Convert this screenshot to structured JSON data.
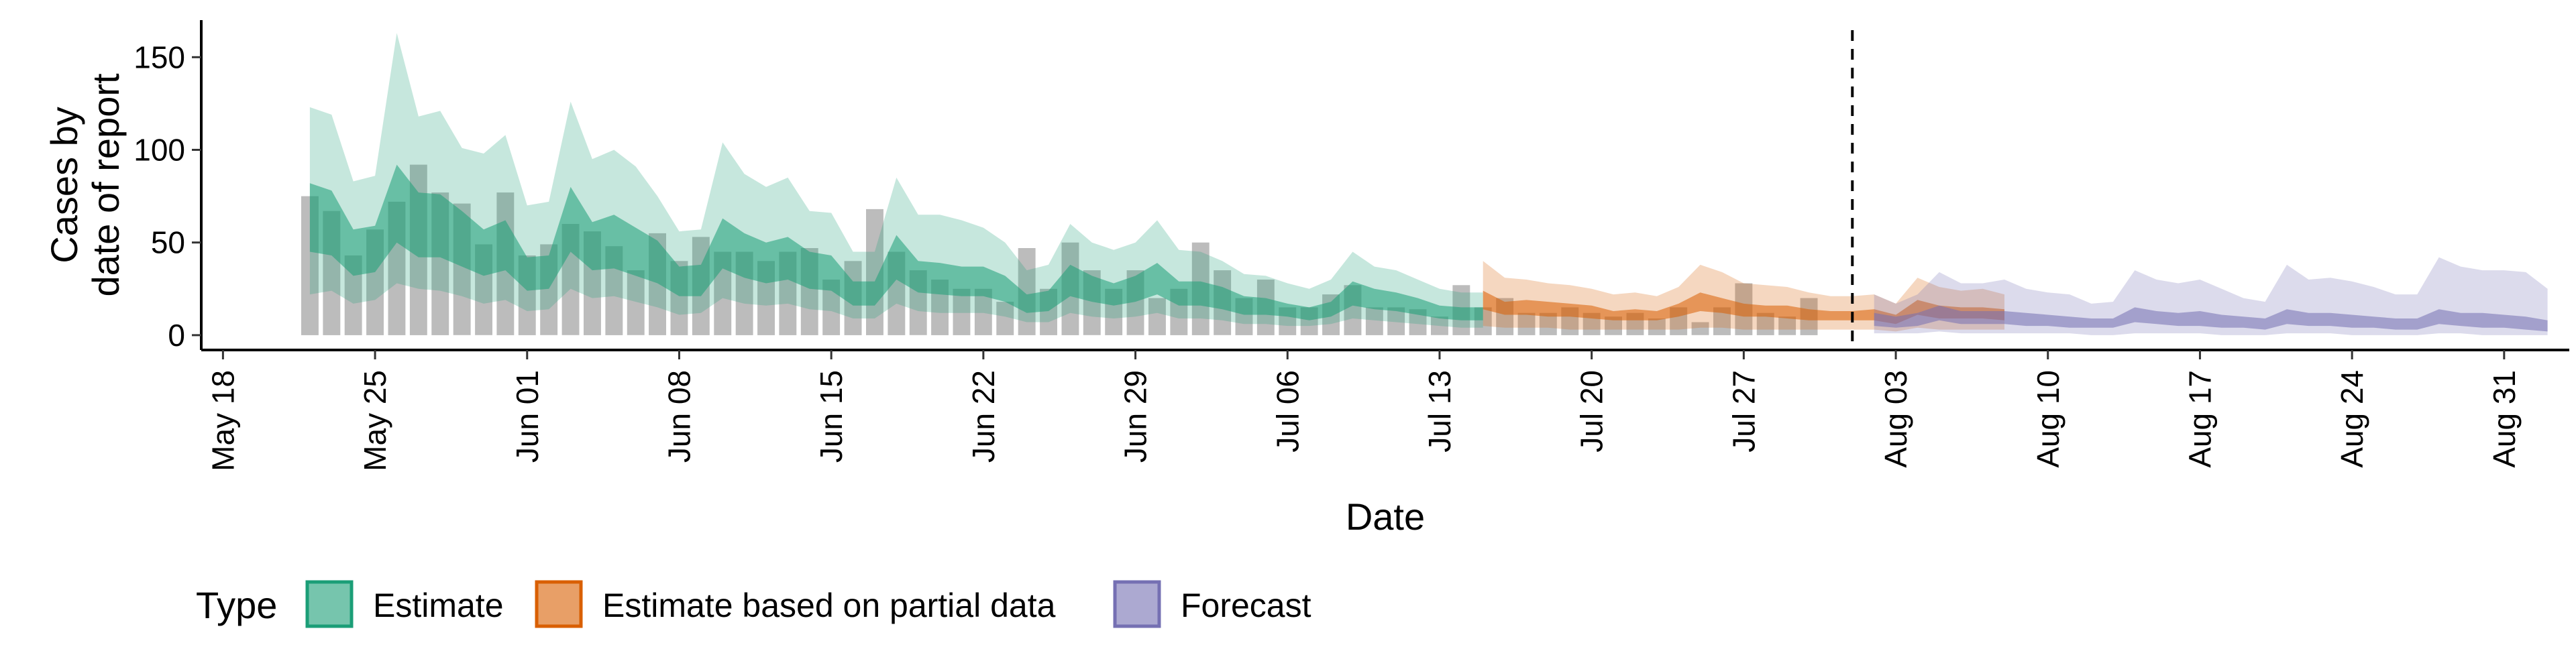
{
  "chart_data": {
    "type": "area",
    "xlabel": "Date",
    "ylabel_lines": [
      "Cases by",
      "date of report"
    ],
    "x_range": [
      "2024-05-17",
      "2024-09-03"
    ],
    "y_range": [
      -8,
      170
    ],
    "y_ticks": [
      0,
      50,
      100,
      150
    ],
    "x_ticks": [
      {
        "date": "2024-05-18",
        "label": "May 18"
      },
      {
        "date": "2024-05-25",
        "label": "May 25"
      },
      {
        "date": "2024-06-01",
        "label": "Jun 01"
      },
      {
        "date": "2024-06-08",
        "label": "Jun 08"
      },
      {
        "date": "2024-06-15",
        "label": "Jun 15"
      },
      {
        "date": "2024-06-22",
        "label": "Jun 22"
      },
      {
        "date": "2024-06-29",
        "label": "Jun 29"
      },
      {
        "date": "2024-07-06",
        "label": "Jul 06"
      },
      {
        "date": "2024-07-13",
        "label": "Jul 13"
      },
      {
        "date": "2024-07-20",
        "label": "Jul 20"
      },
      {
        "date": "2024-07-27",
        "label": "Jul 27"
      },
      {
        "date": "2024-08-03",
        "label": "Aug 03"
      },
      {
        "date": "2024-08-10",
        "label": "Aug 10"
      },
      {
        "date": "2024-08-17",
        "label": "Aug 17"
      },
      {
        "date": "2024-08-24",
        "label": "Aug 24"
      },
      {
        "date": "2024-08-31",
        "label": "Aug 31"
      }
    ],
    "forecast_date": "2024-08-01",
    "grid": false,
    "legend": {
      "title": "Type",
      "placement": "bottom-left",
      "entries": [
        {
          "label": "Estimate",
          "color": "#1B9E77"
        },
        {
          "label": "Estimate based on partial data",
          "color": "#D95F02"
        },
        {
          "label": "Forecast",
          "color": "#7570B3"
        }
      ]
    },
    "observed": {
      "color": "#a6a6a6",
      "start": "2024-05-22",
      "values": [
        75,
        67,
        43,
        57,
        72,
        92,
        77,
        71,
        49,
        77,
        43,
        49,
        60,
        56,
        48,
        35,
        55,
        40,
        53,
        45,
        45,
        40,
        45,
        47,
        30,
        40,
        68,
        45,
        35,
        30,
        25,
        25,
        18,
        47,
        25,
        50,
        35,
        25,
        35,
        20,
        25,
        50,
        35,
        20,
        30,
        15,
        15,
        22,
        27,
        15,
        15,
        14,
        10,
        27,
        15,
        20,
        12,
        12,
        15,
        12,
        10,
        12,
        9,
        15,
        7,
        15,
        28,
        12,
        10,
        20
      ]
    },
    "series": [
      {
        "name": "Estimate",
        "color": "#1B9E77",
        "start": "2024-05-22",
        "outer_upper": [
          123,
          119,
          83,
          86,
          163,
          118,
          121,
          101,
          98,
          108,
          70,
          72,
          126,
          95,
          100,
          91,
          75,
          56,
          57,
          104,
          87,
          80,
          85,
          67,
          66,
          45,
          45,
          85,
          65,
          65,
          62,
          58,
          50,
          35,
          38,
          60,
          50,
          46,
          50,
          62,
          46,
          45,
          40,
          33,
          32,
          28,
          25,
          30,
          45,
          37,
          35,
          30,
          25,
          23,
          23
        ],
        "inner_upper": [
          82,
          78,
          57,
          59,
          92,
          77,
          76,
          67,
          57,
          62,
          42,
          43,
          80,
          61,
          65,
          58,
          51,
          37,
          38,
          63,
          55,
          50,
          53,
          45,
          43,
          29,
          29,
          54,
          40,
          39,
          37,
          37,
          32,
          22,
          24,
          38,
          32,
          28,
          32,
          39,
          29,
          29,
          26,
          21,
          20,
          17,
          15,
          18,
          29,
          25,
          23,
          20,
          16,
          15,
          15
        ],
        "inner_lower": [
          45,
          43,
          32,
          34,
          50,
          42,
          42,
          37,
          32,
          35,
          24,
          25,
          45,
          35,
          36,
          32,
          28,
          21,
          21,
          36,
          31,
          28,
          30,
          25,
          24,
          16,
          16,
          30,
          23,
          22,
          21,
          21,
          18,
          12,
          13,
          21,
          18,
          16,
          18,
          22,
          16,
          16,
          14,
          11,
          11,
          10,
          8,
          10,
          16,
          14,
          13,
          11,
          9,
          8,
          8
        ],
        "outer_lower": [
          22,
          24,
          17,
          19,
          28,
          25,
          24,
          21,
          17,
          19,
          13,
          14,
          25,
          20,
          21,
          18,
          15,
          11,
          12,
          20,
          17,
          16,
          17,
          14,
          13,
          9,
          9,
          17,
          13,
          12,
          12,
          12,
          10,
          7,
          7,
          12,
          10,
          9,
          10,
          12,
          9,
          9,
          8,
          6,
          6,
          5,
          5,
          6,
          9,
          8,
          7,
          6,
          5,
          4,
          4
        ]
      },
      {
        "name": "Estimate based on partial data",
        "color": "#D95F02",
        "start": "2024-07-15",
        "outer_upper": [
          40,
          31,
          30,
          28,
          27,
          25,
          22,
          23,
          21,
          26,
          38,
          34,
          28,
          27,
          26,
          23,
          21,
          21,
          22,
          17,
          31,
          26,
          24,
          25,
          22
        ],
        "inner_upper": [
          24,
          18,
          19,
          18,
          17,
          16,
          13,
          14,
          13,
          17,
          23,
          20,
          17,
          16,
          16,
          14,
          13,
          13,
          14,
          11,
          19,
          16,
          15,
          15,
          14
        ],
        "inner_lower": [
          14,
          11,
          11,
          10,
          10,
          9,
          8,
          8,
          8,
          10,
          13,
          12,
          10,
          10,
          9,
          8,
          8,
          8,
          8,
          6,
          11,
          9,
          9,
          9,
          8
        ],
        "outer_lower": [
          5,
          4,
          4,
          4,
          3,
          3,
          3,
          3,
          3,
          3,
          4,
          4,
          3,
          3,
          3,
          3,
          3,
          3,
          3,
          2,
          4,
          3,
          3,
          3,
          3
        ]
      },
      {
        "name": "Forecast",
        "color": "#7570B3",
        "start": "2024-08-02",
        "outer_upper": [
          22,
          17,
          22,
          34,
          28,
          28,
          30,
          25,
          23,
          22,
          17,
          18,
          35,
          30,
          28,
          30,
          25,
          20,
          18,
          38,
          30,
          31,
          29,
          26,
          22,
          22,
          42,
          37,
          35,
          35,
          34,
          25
        ],
        "inner_upper": [
          12,
          10,
          12,
          16,
          13,
          13,
          13,
          12,
          11,
          10,
          9,
          9,
          15,
          13,
          12,
          13,
          11,
          10,
          9,
          14,
          12,
          12,
          11,
          10,
          9,
          9,
          14,
          12,
          12,
          11,
          10,
          8
        ],
        "inner_lower": [
          5,
          4,
          5,
          8,
          6,
          6,
          6,
          5,
          5,
          4,
          4,
          4,
          7,
          6,
          5,
          5,
          4,
          4,
          3,
          6,
          5,
          5,
          4,
          4,
          3,
          3,
          6,
          5,
          4,
          4,
          3,
          2
        ],
        "outer_lower": [
          1,
          1,
          1,
          2,
          1,
          1,
          1,
          1,
          1,
          1,
          0,
          0,
          1,
          1,
          1,
          1,
          0,
          0,
          0,
          1,
          1,
          1,
          0,
          0,
          0,
          0,
          1,
          1,
          0,
          0,
          0,
          0
        ]
      }
    ]
  }
}
